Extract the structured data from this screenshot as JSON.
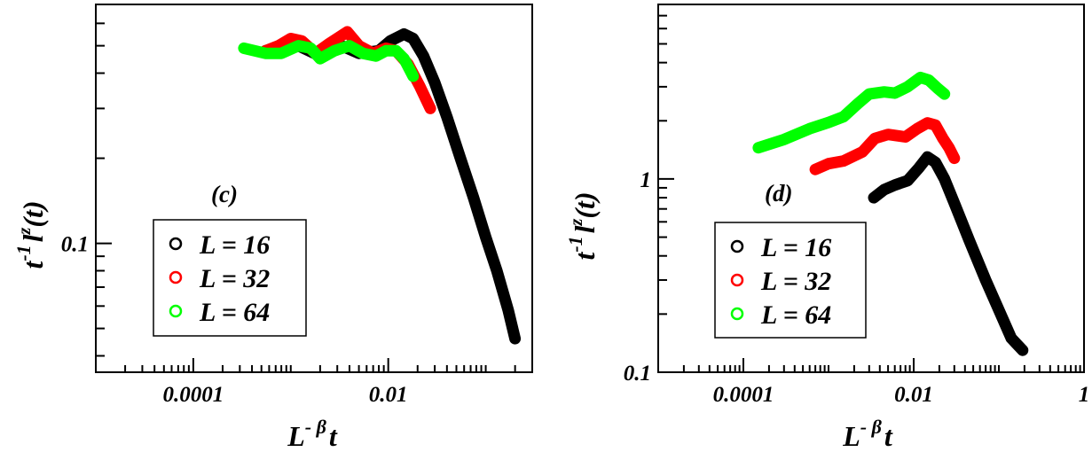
{
  "chart_data": [
    {
      "type": "line",
      "panel_label": "(c)",
      "xlabel_base": "L",
      "xlabel_sup": "- β",
      "xlabel_tail": "t",
      "ylabel_head": "t",
      "ylabel_sup1": "-1",
      "ylabel_mid": "l",
      "ylabel_sup2": "z",
      "ylabel_tail": "(t)",
      "xscale": "log",
      "yscale": "log",
      "xlim": [
        1e-05,
        0.3
      ],
      "ylim": [
        0.035,
        0.7
      ],
      "x_tick_labels": [
        {
          "value": 0.0001,
          "label": "0.0001"
        },
        {
          "value": 0.01,
          "label": "0.01"
        }
      ],
      "y_tick_labels": [
        {
          "value": 0.1,
          "label": "0.1"
        }
      ],
      "legend_position": "lower-left",
      "series": [
        {
          "name": "L = 16",
          "color": "#000000",
          "points": [
            [
              0.00055,
              0.48
            ],
            [
              0.0008,
              0.49
            ],
            [
              0.0012,
              0.5
            ],
            [
              0.002,
              0.46
            ],
            [
              0.0033,
              0.5
            ],
            [
              0.005,
              0.47
            ],
            [
              0.008,
              0.48
            ],
            [
              0.0105,
              0.52
            ],
            [
              0.0145,
              0.55
            ],
            [
              0.018,
              0.53
            ],
            [
              0.023,
              0.46
            ],
            [
              0.03,
              0.37
            ],
            [
              0.04,
              0.28
            ],
            [
              0.055,
              0.2
            ],
            [
              0.075,
              0.145
            ],
            [
              0.1,
              0.105
            ],
            [
              0.13,
              0.08
            ],
            [
              0.17,
              0.058
            ],
            [
              0.2,
              0.046
            ]
          ]
        },
        {
          "name": "L = 32",
          "color": "#ff0000",
          "points": [
            [
              0.00055,
              0.48
            ],
            [
              0.00075,
              0.5
            ],
            [
              0.001,
              0.53
            ],
            [
              0.0013,
              0.52
            ],
            [
              0.0018,
              0.47
            ],
            [
              0.0025,
              0.51
            ],
            [
              0.0038,
              0.56
            ],
            [
              0.005,
              0.5
            ],
            [
              0.007,
              0.47
            ],
            [
              0.0095,
              0.49
            ],
            [
              0.012,
              0.48
            ],
            [
              0.016,
              0.43
            ],
            [
              0.021,
              0.36
            ],
            [
              0.027,
              0.3
            ]
          ]
        },
        {
          "name": "L = 64",
          "color": "#00ff00",
          "points": [
            [
              0.00033,
              0.49
            ],
            [
              0.00055,
              0.47
            ],
            [
              0.0008,
              0.47
            ],
            [
              0.0012,
              0.5
            ],
            [
              0.0016,
              0.49
            ],
            [
              0.002,
              0.45
            ],
            [
              0.0028,
              0.48
            ],
            [
              0.004,
              0.5
            ],
            [
              0.0055,
              0.47
            ],
            [
              0.0075,
              0.46
            ],
            [
              0.0095,
              0.48
            ],
            [
              0.012,
              0.48
            ],
            [
              0.0145,
              0.45
            ],
            [
              0.018,
              0.39
            ]
          ]
        }
      ]
    },
    {
      "type": "line",
      "panel_label": "(d)",
      "xlabel_base": "L",
      "xlabel_sup": "- β",
      "xlabel_tail": "t",
      "ylabel_head": "t",
      "ylabel_sup1": "-1",
      "ylabel_mid": "l",
      "ylabel_sup2": "z",
      "ylabel_tail": "(t)",
      "xscale": "log",
      "yscale": "log",
      "xlim": [
        1e-05,
        1
      ],
      "ylim": [
        0.1,
        8
      ],
      "x_tick_labels": [
        {
          "value": 0.0001,
          "label": "0.0001"
        },
        {
          "value": 0.01,
          "label": "0.01"
        },
        {
          "value": 1,
          "label": "1"
        }
      ],
      "y_tick_labels": [
        {
          "value": 0.1,
          "label": "0.1"
        },
        {
          "value": 1,
          "label": "1"
        }
      ],
      "legend_position": "lower-left",
      "series": [
        {
          "name": "L = 16",
          "color": "#000000",
          "points": [
            [
              0.0034,
              0.8
            ],
            [
              0.0045,
              0.88
            ],
            [
              0.006,
              0.93
            ],
            [
              0.0085,
              0.98
            ],
            [
              0.0115,
              1.14
            ],
            [
              0.0145,
              1.3
            ],
            [
              0.018,
              1.22
            ],
            [
              0.023,
              1.0
            ],
            [
              0.03,
              0.75
            ],
            [
              0.045,
              0.48
            ],
            [
              0.07,
              0.3
            ],
            [
              0.1,
              0.21
            ],
            [
              0.14,
              0.15
            ],
            [
              0.19,
              0.13
            ]
          ]
        },
        {
          "name": "L = 32",
          "color": "#ff0000",
          "points": [
            [
              0.0007,
              1.12
            ],
            [
              0.001,
              1.2
            ],
            [
              0.0015,
              1.24
            ],
            [
              0.0025,
              1.38
            ],
            [
              0.0035,
              1.62
            ],
            [
              0.005,
              1.7
            ],
            [
              0.008,
              1.65
            ],
            [
              0.011,
              1.82
            ],
            [
              0.0145,
              1.95
            ],
            [
              0.018,
              1.9
            ],
            [
              0.022,
              1.62
            ],
            [
              0.026,
              1.45
            ],
            [
              0.03,
              1.28
            ]
          ]
        },
        {
          "name": "L = 64",
          "color": "#00ff00",
          "points": [
            [
              0.00015,
              1.45
            ],
            [
              0.0003,
              1.6
            ],
            [
              0.0006,
              1.82
            ],
            [
              0.001,
              1.96
            ],
            [
              0.0015,
              2.1
            ],
            [
              0.0022,
              2.45
            ],
            [
              0.003,
              2.75
            ],
            [
              0.0045,
              2.82
            ],
            [
              0.006,
              2.78
            ],
            [
              0.0085,
              3.0
            ],
            [
              0.012,
              3.35
            ],
            [
              0.015,
              3.25
            ],
            [
              0.019,
              2.95
            ],
            [
              0.023,
              2.75
            ]
          ]
        }
      ]
    }
  ]
}
